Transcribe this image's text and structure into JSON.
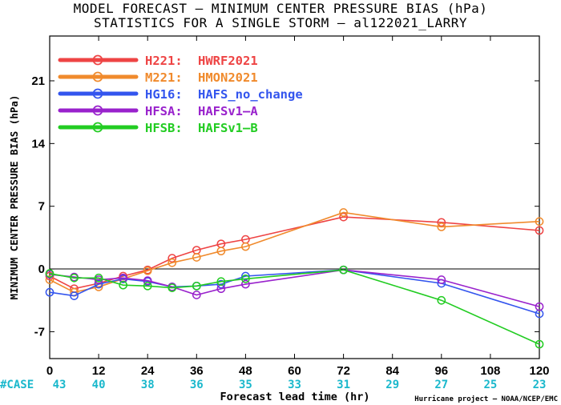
{
  "chart_data": {
    "type": "line",
    "title": "MODEL FORECAST – MINIMUM CENTER PRESSURE BIAS (hPa)",
    "subtitle": "STATISTICS FOR A SINGLE STORM – al122021_LARRY",
    "xlabel": "Forecast lead time (hr)",
    "ylabel": "MINIMUM CENTER PRESSURE BIAS (hPa)",
    "xlim": [
      0,
      120
    ],
    "ylim": [
      -10,
      26
    ],
    "x_ticks": [
      0,
      12,
      24,
      36,
      48,
      60,
      72,
      84,
      96,
      108,
      120
    ],
    "y_ticks": [
      -7,
      0,
      7,
      14,
      21
    ],
    "case_label": "#CASE",
    "case_counts": [
      43,
      40,
      38,
      36,
      35,
      33,
      31,
      29,
      27,
      25,
      23
    ],
    "credit": "Hurricane project – NOAA/NCEP/EMC",
    "legend_position": "top-left",
    "grid": false,
    "series": [
      {
        "code": "H221:",
        "name": "HWRF2021",
        "color": "#ee4444",
        "x": [
          0,
          6,
          12,
          18,
          24,
          30,
          36,
          42,
          48,
          72,
          96,
          120
        ],
        "y": [
          -0.8,
          -2.2,
          -1.6,
          -0.8,
          -0.1,
          1.2,
          2.1,
          2.8,
          3.3,
          5.8,
          5.2,
          4.3
        ]
      },
      {
        "code": "M221:",
        "name": "HMON2021",
        "color": "#f08a2c",
        "x": [
          0,
          6,
          12,
          18,
          24,
          30,
          36,
          42,
          48,
          72,
          96,
          120
        ],
        "y": [
          -1.2,
          -2.6,
          -2.0,
          -1.1,
          -0.2,
          0.7,
          1.3,
          2.0,
          2.5,
          6.3,
          4.7,
          5.3
        ]
      },
      {
        "code": "HG16:",
        "name": "HAFS_no_change",
        "color": "#3355ee",
        "x": [
          0,
          6,
          12,
          18,
          24,
          30,
          36,
          42,
          48,
          72,
          96,
          120
        ],
        "y": [
          -2.6,
          -3.0,
          -1.7,
          -1.1,
          -1.4,
          -2.0,
          -1.9,
          -1.7,
          -0.8,
          -0.1,
          -1.6,
          -5.0
        ]
      },
      {
        "code": "HFSA:",
        "name": "HAFSv1–A",
        "color": "#9922cc",
        "x": [
          0,
          6,
          12,
          18,
          24,
          30,
          36,
          42,
          48,
          72,
          96,
          120
        ],
        "y": [
          -0.6,
          -0.9,
          -1.2,
          -1.0,
          -1.3,
          -2.0,
          -2.9,
          -2.2,
          -1.7,
          -0.1,
          -1.2,
          -4.2
        ]
      },
      {
        "code": "HFSB:",
        "name": "HAFSv1–B",
        "color": "#22cc22",
        "x": [
          0,
          6,
          12,
          18,
          24,
          30,
          36,
          42,
          48,
          72,
          96,
          120
        ],
        "y": [
          -0.5,
          -1.0,
          -1.0,
          -1.8,
          -1.9,
          -2.1,
          -1.9,
          -1.4,
          -1.1,
          -0.1,
          -3.5,
          -8.4
        ]
      }
    ]
  }
}
